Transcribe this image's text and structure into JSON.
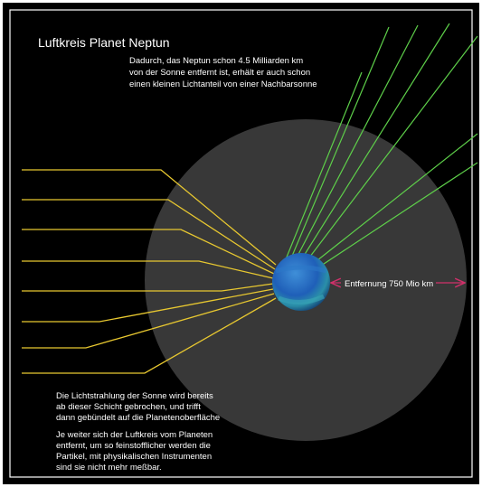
{
  "title": "Luftkreis Planet Neptun",
  "intro": [
    "Dadurch, das Neptun schon 4.5 Milliarden km",
    "von der Sonne entfernt ist, erhält er auch schon",
    "einen kleinen Lichtanteil von einer Nachbarsonne"
  ],
  "distance_label": "Entfernung 750 Mio km",
  "refraction_note": [
    "Die Lichtstrahlung der Sonne wird bereits",
    "ab dieser Schicht gebrochen, und trifft",
    "dann gebündelt auf die Planetenoberfläche"
  ],
  "density_note": [
    "Je weiter sich der Luftkreis vom Planeten",
    "entfernt, um so feinstofflicher werden die",
    "Partikel, mit physikalischen Instrumenten",
    "sind sie nicht mehr meßbar."
  ]
}
